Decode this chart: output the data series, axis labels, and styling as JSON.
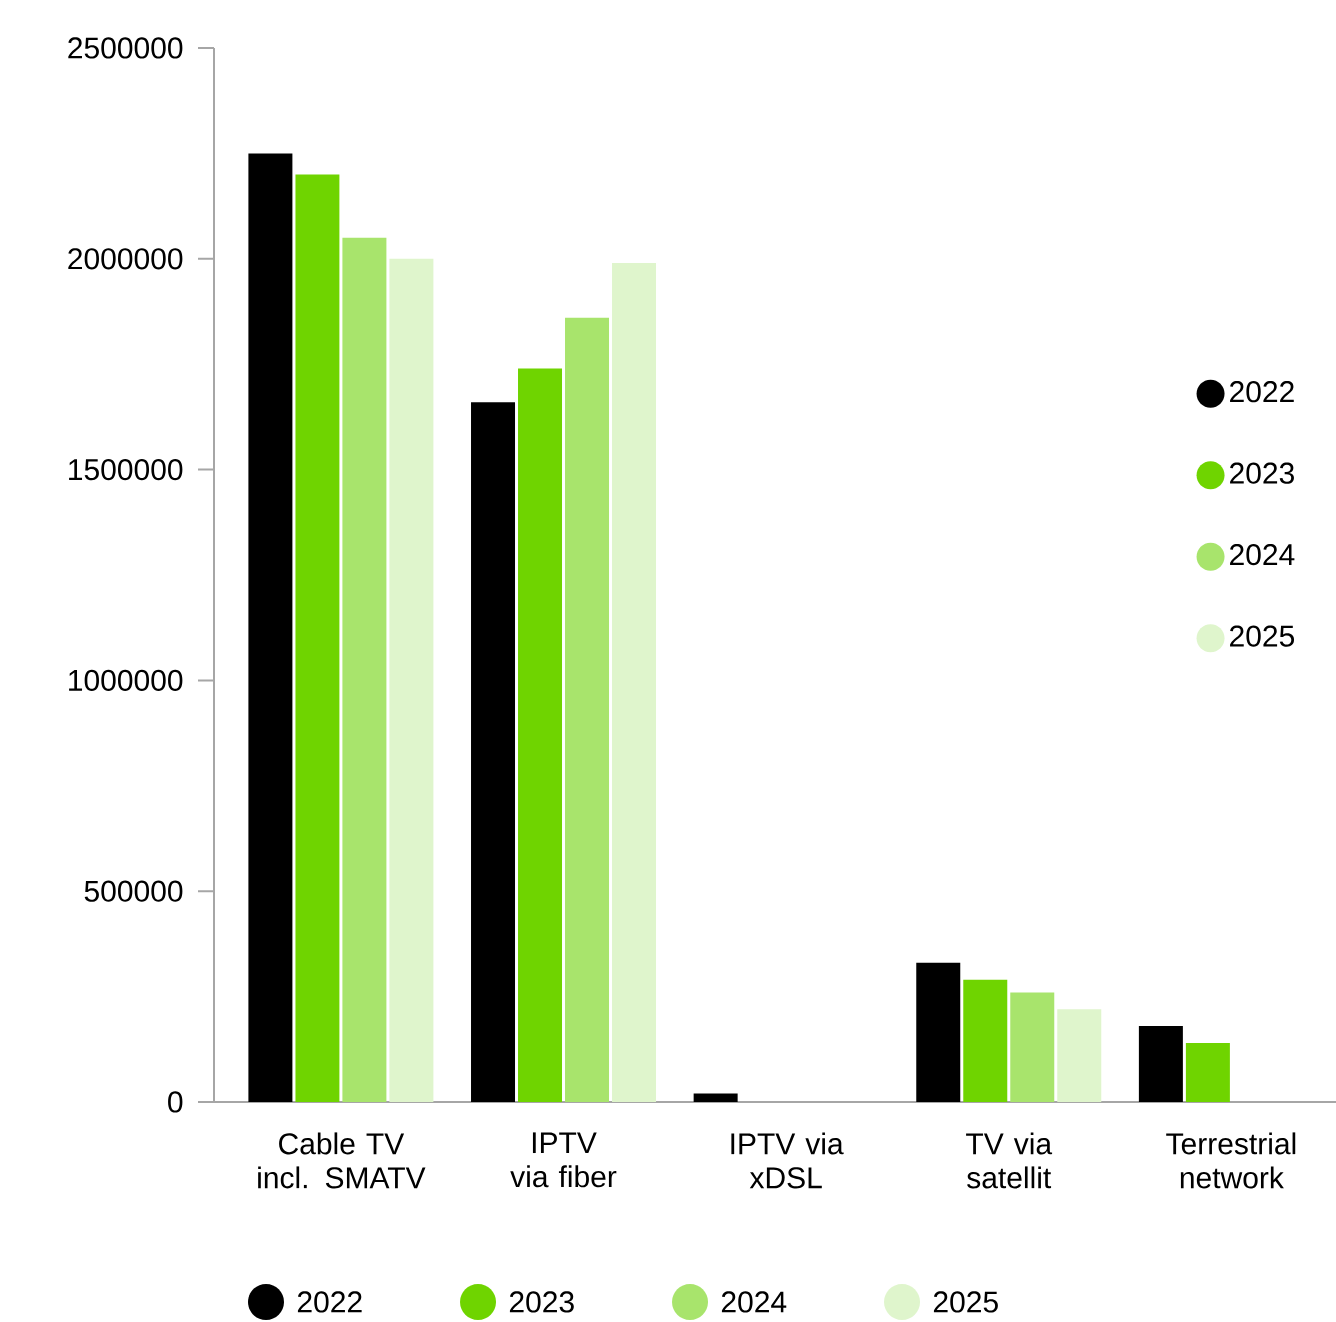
{
  "chart_data": {
    "type": "bar",
    "categories": [
      "Cable TV incl. SMATV",
      "IPTV via fiber",
      "IPTV via xDSL",
      "TV via satellit",
      "Terrestrial network"
    ],
    "series": [
      {
        "name": "2022",
        "color": "#000000",
        "values": [
          2250000,
          1660000,
          20000,
          330000,
          180000
        ]
      },
      {
        "name": "2023",
        "color": "#6fd400",
        "values": [
          2200000,
          1740000,
          null,
          290000,
          140000
        ]
      },
      {
        "name": "2024",
        "color": "#a8e46c",
        "values": [
          2050000,
          1860000,
          null,
          260000,
          null
        ]
      },
      {
        "name": "2025",
        "color": "#dff5cc",
        "values": [
          2000000,
          1990000,
          null,
          220000,
          null
        ]
      }
    ],
    "ylim": [
      0,
      2500000
    ],
    "yticks": [
      0,
      500000,
      1000000,
      1500000,
      2000000,
      2500000
    ],
    "legend": "right"
  }
}
